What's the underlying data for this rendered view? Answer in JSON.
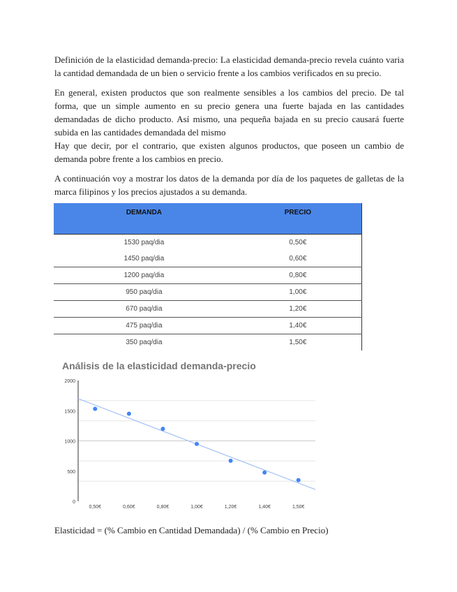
{
  "paragraphs": [
    "Definición de la elasticidad demanda-precio: La elasticidad demanda-precio revela cuánto varia la cantidad demandada de un bien o servicio frente a los cambios verificados en su precio.",
    "En general, existen productos que son realmente sensibles a los cambios del precio. De tal forma, que un simple aumento en su precio genera una fuerte bajada en las cantidades demandadas de dicho producto. Así mismo, una pequeña bajada en su precio causará fuerte subida en las cantidades demandada del mismo",
    "Hay que decir, por el contrario, que existen algunos productos, que poseen un cambio de demanda pobre frente a los cambios en precio.",
    "A continuación voy a mostrar los datos de la demanda por día de los paquetes de galletas de la marca filipinos y los precios ajustados a su demanda."
  ],
  "table": {
    "headers": [
      "DEMANDA",
      "PRECIO"
    ],
    "header_color": "#4a86e8",
    "rows": [
      [
        "1530 paq/dia",
        "0,50€"
      ],
      [
        "1450 paq/dia",
        "0,60€"
      ],
      [
        "1200 paq/dia",
        "0,80€"
      ],
      [
        "950 paq/dia",
        "1,00€"
      ],
      [
        "670 paq/dia",
        "1,20€"
      ],
      [
        "475 paq/dia",
        "1,40€"
      ],
      [
        "350 paq/dia",
        "1,50€"
      ]
    ]
  },
  "chart_data": {
    "type": "scatter",
    "title": "Análisis de la elasticidad demanda-precio",
    "categories": [
      "0,50€",
      "0,60€",
      "0,80€",
      "1,00€",
      "1,20€",
      "1,40€",
      "1,50€"
    ],
    "values": [
      1530,
      1450,
      1200,
      950,
      670,
      475,
      350
    ],
    "yticks": [
      "0",
      "500",
      "1000",
      "1500",
      "2000"
    ],
    "ylim": [
      0,
      2000
    ],
    "trendline": "linear",
    "grid": true,
    "point_color": "#4285f4",
    "trendline_color": "#a4c2f4"
  },
  "formula": "Elasticidad = (% Cambio en Cantidad Demandada) / (% Cambio en Precio)"
}
